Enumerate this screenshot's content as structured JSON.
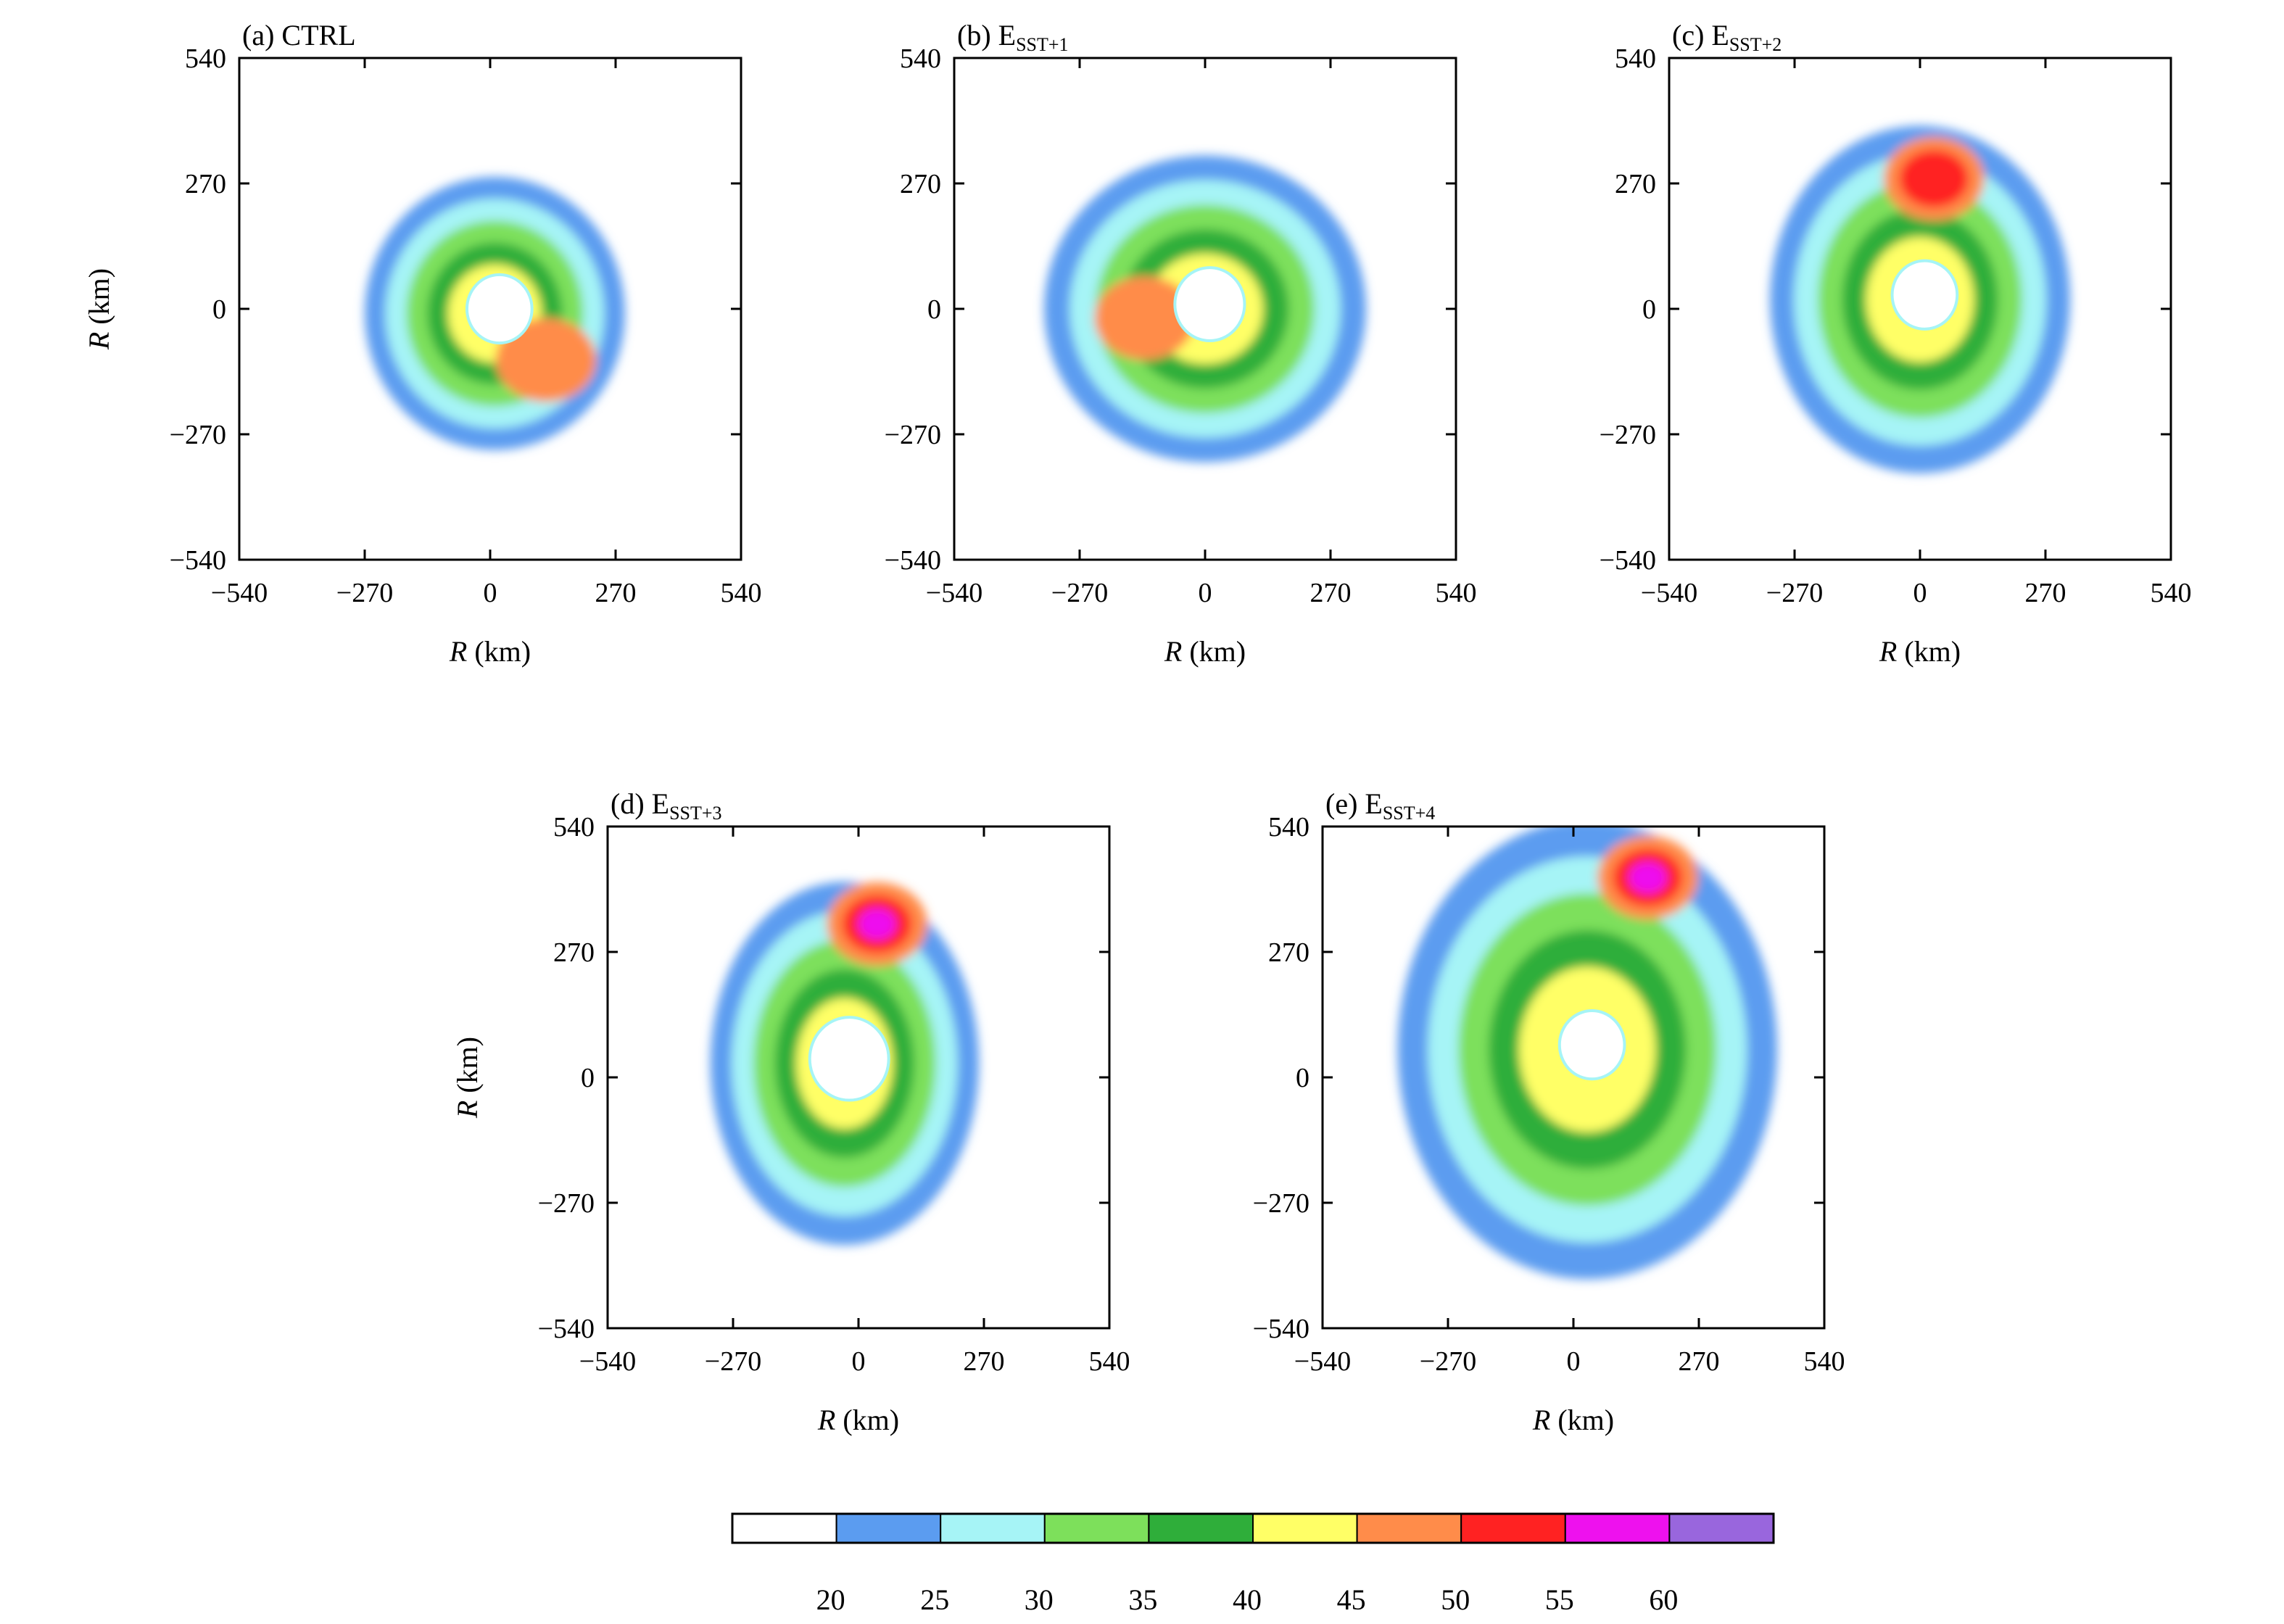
{
  "chart_data": {
    "type": "contour",
    "panels": [
      {
        "id": "a",
        "title_prefix": "(a) ",
        "title_main": "CTRL",
        "title_sub": "",
        "xlabel_var": "R",
        "xlabel_unit": " (km)",
        "ylabel_var": "R",
        "ylabel_unit": " (km)"
      },
      {
        "id": "b",
        "title_prefix": "(b) ",
        "title_main": "E",
        "title_sub": "SST+1",
        "xlabel_var": "R",
        "xlabel_unit": " (km)",
        "ylabel_var": "",
        "ylabel_unit": ""
      },
      {
        "id": "c",
        "title_prefix": "(c) ",
        "title_main": "E",
        "title_sub": "SST+2",
        "xlabel_var": "R",
        "xlabel_unit": " (km)",
        "ylabel_var": "",
        "ylabel_unit": ""
      },
      {
        "id": "d",
        "title_prefix": "(d) ",
        "title_main": "E",
        "title_sub": "SST+3",
        "xlabel_var": "R",
        "xlabel_unit": " (km)",
        "ylabel_var": "R",
        "ylabel_unit": " (km)"
      },
      {
        "id": "e",
        "title_prefix": "(e) ",
        "title_main": "E",
        "title_sub": "SST+4",
        "xlabel_var": "R",
        "xlabel_unit": " (km)",
        "ylabel_var": "",
        "ylabel_unit": ""
      }
    ],
    "xlim": [
      -540,
      540
    ],
    "ylim": [
      -540,
      540
    ],
    "xticks": [
      -540,
      -270,
      0,
      270,
      540
    ],
    "yticks": [
      -540,
      -270,
      0,
      270,
      540
    ],
    "xtick_labels": [
      "−540",
      "−270",
      "0",
      "270",
      "540"
    ],
    "ytick_labels": [
      "−540",
      "−270",
      "0",
      "270",
      "540"
    ],
    "grid": false,
    "colorbar": {
      "levels": [
        20,
        25,
        30,
        35,
        40,
        45,
        50,
        55,
        60
      ],
      "level_labels": [
        "20",
        "25",
        "30",
        "35",
        "40",
        "45",
        "50",
        "55",
        "60"
      ],
      "colors": [
        "#ffffff",
        "#5b9cf0",
        "#a6f4f6",
        "#7de05b",
        "#2fae3a",
        "#ffff66",
        "#ff8c4a",
        "#ff2222",
        "#ee11ee",
        "#9966dd"
      ]
    }
  }
}
